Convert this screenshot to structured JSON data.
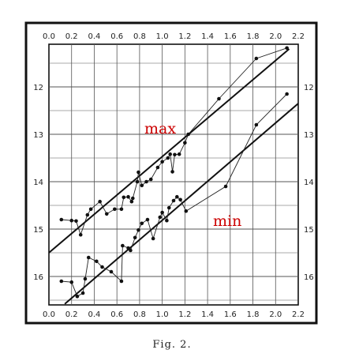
{
  "caption": "Fig. 2.",
  "chart_data": {
    "type": "scatter",
    "title": "",
    "xlabel": "",
    "ylabel": "",
    "xlim": [
      0,
      2.2
    ],
    "ylim": [
      16.6,
      11.1
    ],
    "y_inverted": true,
    "grid": true,
    "x_ticks": [
      0.0,
      0.2,
      0.4,
      0.6,
      0.8,
      1.0,
      1.2,
      1.4,
      1.6,
      1.8,
      2.0,
      2.2
    ],
    "x_tick_labels": [
      "0.0",
      "0.2",
      "0.4",
      "0.6",
      "0.8",
      "1.0",
      "1.2",
      "1.4",
      "1.6",
      "1.8",
      "2.0",
      "2.2"
    ],
    "y_ticks": [
      12,
      13,
      14,
      15,
      16
    ],
    "y_tick_labels": [
      "12",
      "13",
      "14",
      "15",
      "16"
    ],
    "annotation_color": "#cc0000",
    "series": [
      {
        "name": "max",
        "points": [
          [
            0.11,
            14.8
          ],
          [
            0.2,
            14.82
          ],
          [
            0.24,
            14.83
          ],
          [
            0.28,
            15.12
          ],
          [
            0.34,
            14.7
          ],
          [
            0.37,
            14.58
          ],
          [
            0.45,
            14.42
          ],
          [
            0.51,
            14.68
          ],
          [
            0.58,
            14.58
          ],
          [
            0.64,
            14.58
          ],
          [
            0.66,
            14.33
          ],
          [
            0.7,
            14.32
          ],
          [
            0.73,
            14.42
          ],
          [
            0.74,
            14.35
          ],
          [
            0.78,
            14.0
          ],
          [
            0.79,
            13.8
          ],
          [
            0.82,
            14.08
          ],
          [
            0.86,
            14.0
          ],
          [
            0.9,
            13.95
          ],
          [
            0.96,
            13.7
          ],
          [
            1.0,
            13.58
          ],
          [
            1.05,
            13.5
          ],
          [
            1.07,
            13.42
          ],
          [
            1.09,
            13.79
          ],
          [
            1.11,
            13.43
          ],
          [
            1.15,
            13.42
          ],
          [
            1.2,
            13.18
          ],
          [
            1.23,
            13.0
          ],
          [
            1.5,
            12.25
          ],
          [
            1.83,
            11.4
          ],
          [
            2.1,
            11.18
          ]
        ],
        "fit_line": [
          [
            -0.05,
            15.6
          ],
          [
            2.12,
            11.2
          ]
        ]
      },
      {
        "name": "min",
        "points": [
          [
            0.11,
            16.1
          ],
          [
            0.2,
            16.12
          ],
          [
            0.25,
            16.42
          ],
          [
            0.3,
            16.35
          ],
          [
            0.32,
            16.05
          ],
          [
            0.35,
            15.6
          ],
          [
            0.42,
            15.68
          ],
          [
            0.47,
            15.8
          ],
          [
            0.55,
            15.9
          ],
          [
            0.64,
            16.1
          ],
          [
            0.65,
            15.35
          ],
          [
            0.7,
            15.4
          ],
          [
            0.72,
            15.45
          ],
          [
            0.76,
            15.18
          ],
          [
            0.79,
            15.02
          ],
          [
            0.82,
            14.88
          ],
          [
            0.87,
            14.8
          ],
          [
            0.92,
            15.2
          ],
          [
            0.98,
            14.75
          ],
          [
            1.0,
            14.65
          ],
          [
            1.04,
            14.82
          ],
          [
            1.06,
            14.55
          ],
          [
            1.1,
            14.4
          ],
          [
            1.13,
            14.32
          ],
          [
            1.16,
            14.38
          ],
          [
            1.21,
            14.62
          ],
          [
            1.56,
            14.1
          ],
          [
            1.83,
            12.8
          ],
          [
            2.1,
            12.15
          ]
        ],
        "fit_line": [
          [
            0.14,
            16.58
          ],
          [
            2.2,
            12.35
          ]
        ]
      }
    ]
  }
}
